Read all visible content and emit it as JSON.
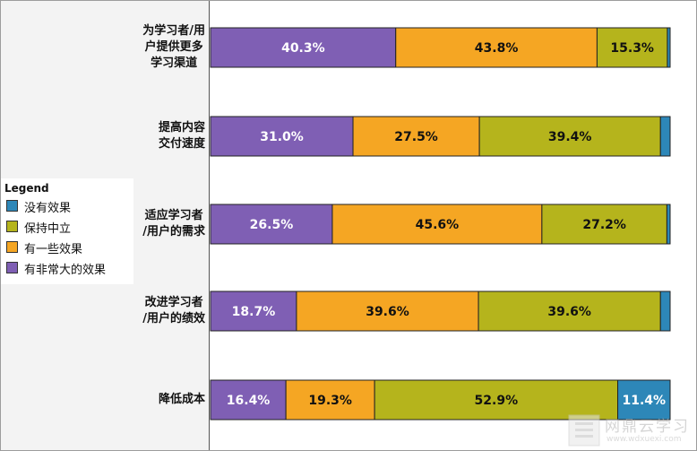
{
  "chart_data": {
    "type": "bar",
    "orientation": "horizontal",
    "stacked": true,
    "categories": [
      "为学习者/用户提供更多学习渠道",
      "提高内容交付速度",
      "适应学习者/用户的需求",
      "改进学习者/用户的绩效",
      "降低成本"
    ],
    "category_label_lines": [
      [
        "为学习者/用",
        "户提供更多",
        "学习渠道"
      ],
      [
        "提高内容",
        "交付速度"
      ],
      [
        "适应学习者",
        "/用户的需求"
      ],
      [
        "改进学习者",
        "/用户的绩效"
      ],
      [
        "降低成本"
      ]
    ],
    "series": [
      {
        "name": "有非常大的效果",
        "color": "#7f5fb4",
        "values": [
          40.3,
          31.0,
          26.5,
          18.7,
          16.4
        ]
      },
      {
        "name": "有一些效果",
        "color": "#f5a623",
        "values": [
          43.8,
          27.5,
          45.6,
          39.6,
          19.3
        ]
      },
      {
        "name": "保持中立",
        "color": "#b5b41c",
        "values": [
          15.3,
          39.4,
          27.2,
          39.6,
          52.9
        ]
      },
      {
        "name": "没有效果",
        "color": "#2d87b8",
        "values": [
          0.6,
          2.1,
          0.7,
          2.1,
          11.4
        ]
      }
    ],
    "data_labels": [
      [
        "40.3%",
        "43.8%",
        "15.3%",
        ""
      ],
      [
        "31.0%",
        "27.5%",
        "39.4%",
        ""
      ],
      [
        "26.5%",
        "45.6%",
        "27.2%",
        ""
      ],
      [
        "18.7%",
        "39.6%",
        "39.6%",
        ""
      ],
      [
        "16.4%",
        "19.3%",
        "52.9%",
        "11.4%"
      ]
    ],
    "xlim": [
      0,
      100
    ],
    "grid": false,
    "legend_position": "left",
    "legend": {
      "title": "Legend",
      "order": [
        "没有效果",
        "保持中立",
        "有一些效果",
        "有非常大的效果"
      ]
    }
  },
  "watermark": {
    "text": "网鼎云学习",
    "url": "www.wdxuexi.com"
  }
}
